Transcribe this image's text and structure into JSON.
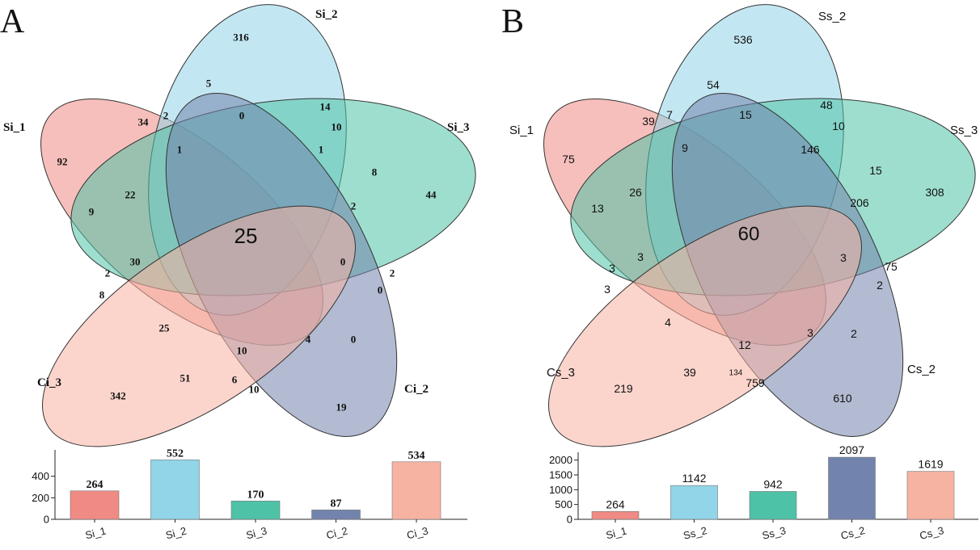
{
  "colors": {
    "set1": "#ef8b84",
    "set2": "#92d4e8",
    "set3": "#4ec2a6",
    "set4": "#7284ad",
    "set5": "#f7b3a2"
  },
  "panelA": {
    "letter": "A",
    "sets": [
      "Si_1",
      "Si_2",
      "Si_3",
      "Ci_2",
      "Ci_3"
    ],
    "center": "25",
    "regions": [
      "316",
      "5",
      "0",
      "14",
      "10",
      "1",
      "1",
      "34",
      "2",
      "92",
      "22",
      "9",
      "8",
      "2",
      "44",
      "2",
      "0",
      "30",
      "2",
      "0",
      "8",
      "25",
      "10",
      "4",
      "0",
      "51",
      "6",
      "10",
      "342",
      "19"
    ]
  },
  "panelB": {
    "letter": "B",
    "sets": [
      "Si_1",
      "Ss_2",
      "Ss_3",
      "Cs_2",
      "Cs_3"
    ],
    "center": "60",
    "regions": [
      "536",
      "54",
      "15",
      "48",
      "10",
      "146",
      "39",
      "7",
      "9",
      "75",
      "13",
      "26",
      "15",
      "206",
      "308",
      "3",
      "3",
      "3",
      "3",
      "75",
      "2",
      "4",
      "12",
      "3",
      "2",
      "39",
      "134",
      "759",
      "219",
      "610"
    ]
  },
  "chart_data": [
    {
      "type": "bar",
      "categories": [
        "Si_1",
        "Si_2",
        "Si_3",
        "Ci_2",
        "Ci_3"
      ],
      "values": [
        264,
        552,
        170,
        87,
        534
      ],
      "ylim": [
        0,
        600
      ],
      "yticks": [
        "0",
        "200",
        "400"
      ]
    },
    {
      "type": "bar",
      "categories": [
        "Si_1",
        "Ss_2",
        "Ss_3",
        "Cs_2",
        "Cs_3"
      ],
      "values": [
        264,
        1142,
        942,
        2097,
        1619
      ],
      "ylim": [
        0,
        2100
      ],
      "yticks": [
        "0",
        "500",
        "1000",
        "1500",
        "2000"
      ]
    }
  ]
}
